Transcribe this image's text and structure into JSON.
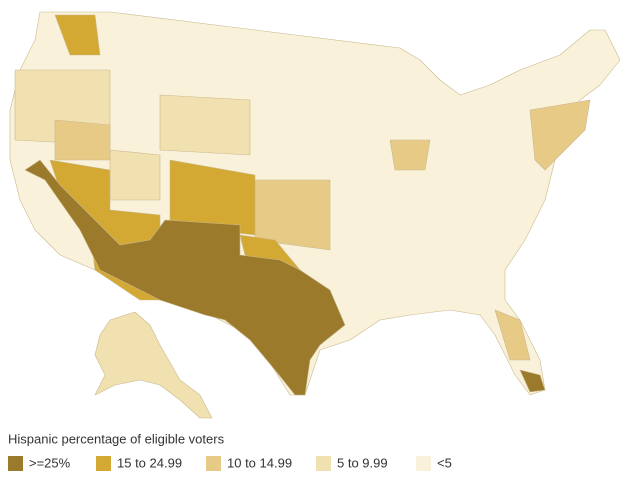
{
  "legend": {
    "title": "Hispanic percentage of eligible voters",
    "items": [
      {
        "label": ">=25%",
        "color": "#9b7a2b"
      },
      {
        "label": "15 to 24.99",
        "color": "#d3a933"
      },
      {
        "label": "10 to 14.99",
        "color": "#e7ca86"
      },
      {
        "label": "5 to 9.99",
        "color": "#f1e0b0"
      },
      {
        "label": "<5",
        "color": "#f9f1d9"
      }
    ]
  }
}
